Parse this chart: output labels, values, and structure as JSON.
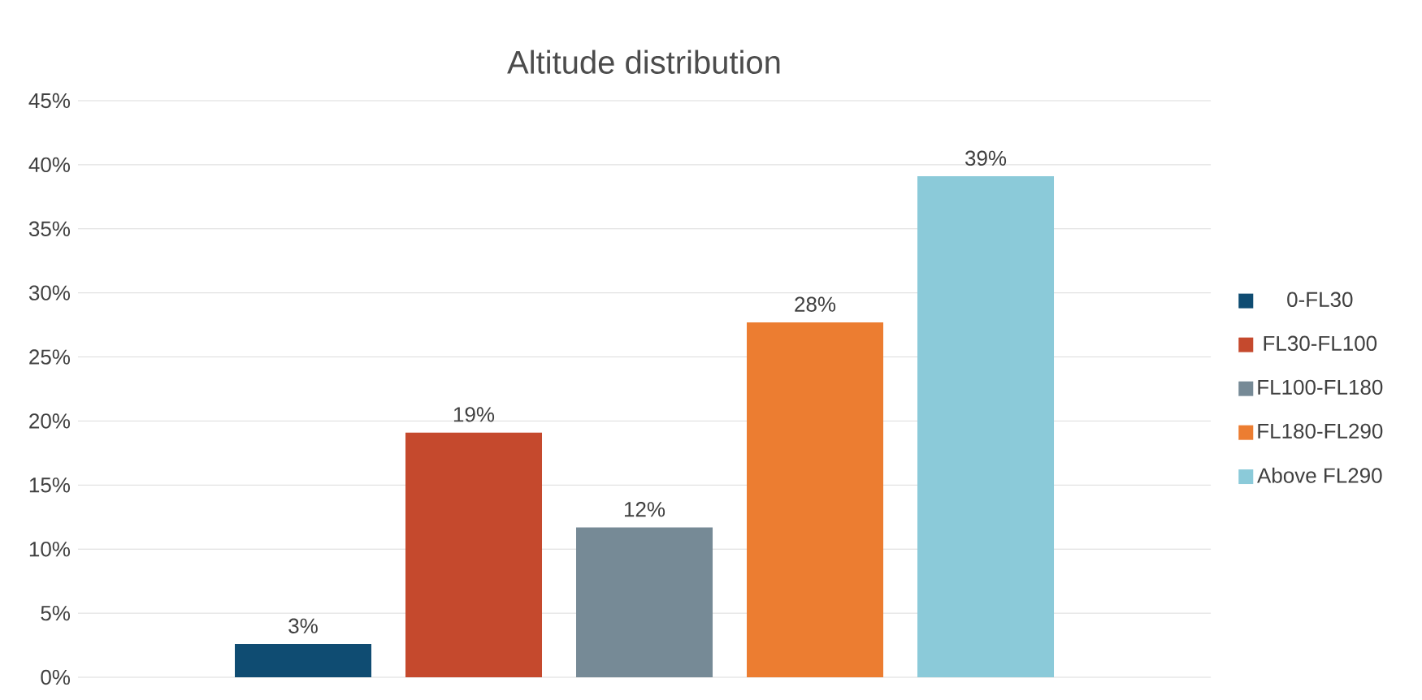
{
  "chart_data": {
    "type": "bar",
    "title": "Altitude distribution",
    "categories": [
      null
    ],
    "series": [
      {
        "name": "0-FL30",
        "color": "#0f4c72",
        "values": [
          2.6
        ],
        "value_labels": [
          "3%"
        ]
      },
      {
        "name": "FL30-FL100",
        "color": "#c5492d",
        "values": [
          19.1
        ],
        "value_labels": [
          "19%"
        ]
      },
      {
        "name": "FL100-FL180",
        "color": "#768a96",
        "values": [
          11.7
        ],
        "value_labels": [
          "12%"
        ]
      },
      {
        "name": "FL180-FL290",
        "color": "#ec7d31",
        "values": [
          27.7
        ],
        "value_labels": [
          "28%"
        ]
      },
      {
        "name": "Above FL290",
        "color": "#8bcad9",
        "values": [
          39.1
        ],
        "value_labels": [
          "39%"
        ]
      }
    ],
    "ylim": [
      0,
      45
    ],
    "yticks": [
      {
        "value": 0,
        "label": "0%"
      },
      {
        "value": 5,
        "label": "5%"
      },
      {
        "value": 10,
        "label": "10%"
      },
      {
        "value": 15,
        "label": "15%"
      },
      {
        "value": 20,
        "label": "20%"
      },
      {
        "value": 25,
        "label": "25%"
      },
      {
        "value": 30,
        "label": "30%"
      },
      {
        "value": 35,
        "label": "35%"
      },
      {
        "value": 40,
        "label": "40%"
      },
      {
        "value": 45,
        "label": "45%"
      }
    ],
    "grid": "y",
    "legend": "right"
  }
}
